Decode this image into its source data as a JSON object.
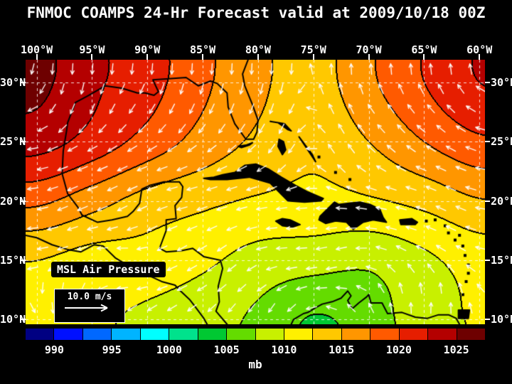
{
  "title": "FNMOC COAMPS 24-Hr Forecast valid at 2009/10/18 00Z",
  "colors": {
    "background": "#000000",
    "text": "#ffffff",
    "contour": "#000000",
    "coastline": "#000000",
    "grid_lines": "#ffffff",
    "wind_arrows": "#ffffff"
  },
  "map": {
    "overlay_label": "MSL Air Pressure",
    "wind_scale_label": "10.0 m/s",
    "lon_tick_labels": [
      "100°W",
      "95°W",
      "90°W",
      "85°W",
      "80°W",
      "75°W",
      "70°W",
      "65°W",
      "60°W"
    ],
    "lon_tick_values": [
      -100,
      -95,
      -90,
      -85,
      -80,
      -75,
      -70,
      -65,
      -60
    ],
    "lat_tick_labels": [
      "30°N",
      "25°N",
      "20°N",
      "15°N",
      "10°N"
    ],
    "lat_tick_values": [
      30,
      25,
      20,
      15,
      10
    ],
    "lon_range": [
      -101.0,
      -59.5
    ],
    "lat_range": [
      9.6,
      31.9
    ]
  },
  "colorbar": {
    "unit": "mb",
    "min": 987.5,
    "max": 1027.5,
    "step": 2.5,
    "tick_labels": [
      990,
      995,
      1000,
      1005,
      1010,
      1015,
      1020,
      1025
    ],
    "palette": [
      "#000082",
      "#0010ff",
      "#0068ff",
      "#00b4ff",
      "#00ffff",
      "#00e28c",
      "#00c832",
      "#64dc00",
      "#c8f000",
      "#fff000",
      "#ffc800",
      "#ff9600",
      "#ff5a00",
      "#e61e00",
      "#b40000",
      "#6e0000"
    ]
  },
  "chart_data": {
    "type": "heatmap",
    "title": "FNMOC COAMPS 24-Hr Forecast valid at 2009/10/18 00Z",
    "variable": "MSL Air Pressure",
    "unit": "mb",
    "contour_interval_mb": 2.5,
    "colorbar_range_mb": [
      987.5,
      1027.5
    ],
    "grid_lons": [
      -100,
      -95,
      -90,
      -85,
      -80,
      -75,
      -70,
      -65,
      -60
    ],
    "grid_lats": [
      30,
      25,
      20,
      15,
      10
    ],
    "pressure_mb": [
      [
        1025.6,
        1023.0,
        1021.0,
        1018.0,
        1015.5,
        1014.0,
        1017.0,
        1020.0,
        1022.5
      ],
      [
        1023.5,
        1021.5,
        1019.0,
        1016.5,
        1014.5,
        1013.0,
        1015.0,
        1017.5,
        1019.5
      ],
      [
        1018.0,
        1016.0,
        1014.0,
        1013.0,
        1012.2,
        1011.8,
        1012.2,
        1013.2,
        1014.8
      ],
      [
        1012.5,
        1011.5,
        1011.5,
        1010.5,
        1009.0,
        1008.5,
        1008.0,
        1009.5,
        1011.0
      ],
      [
        1012.0,
        1010.5,
        1009.5,
        1008.5,
        1007.0,
        1004.8,
        1006.2,
        1009.0,
        1010.2
      ]
    ],
    "features": [
      "high pressure ridge over Texas / western Gulf of Mexico (> 1025 mb)",
      "secondary high northeast Atlantic corner (~ 1022 mb)",
      "weak low over southern Caribbean (~ 1005 mb)",
      "easterly trade-wind flow across southern map"
    ],
    "wind": {
      "depiction": "white streamline arrows",
      "reference_speed": "10.0 m/s"
    }
  },
  "coastlines": [
    {
      "name": "us-gulf-atlantic-coast",
      "fill": false,
      "points": [
        [
          -95.9,
          18.8
        ],
        [
          -96.3,
          19.5
        ],
        [
          -97.2,
          20.6
        ],
        [
          -97.7,
          22.3
        ],
        [
          -97.6,
          24.2
        ],
        [
          -97.3,
          25.9
        ],
        [
          -97.2,
          26.6
        ],
        [
          -96.5,
          28.3
        ],
        [
          -95.3,
          28.9
        ],
        [
          -93.8,
          29.7
        ],
        [
          -92.3,
          29.5
        ],
        [
          -90.9,
          29.1
        ],
        [
          -90.2,
          29.1
        ],
        [
          -89.4,
          28.9
        ],
        [
          -89.0,
          29.2
        ],
        [
          -89.5,
          30.2
        ],
        [
          -88.1,
          30.3
        ],
        [
          -86.5,
          30.4
        ],
        [
          -85.4,
          29.7
        ],
        [
          -84.3,
          30.1
        ],
        [
          -83.7,
          29.9
        ],
        [
          -82.8,
          29.1
        ],
        [
          -82.7,
          27.9
        ],
        [
          -82.1,
          26.5
        ],
        [
          -81.1,
          25.2
        ],
        [
          -80.4,
          25.2
        ],
        [
          -80.1,
          25.8
        ],
        [
          -80.0,
          26.8
        ],
        [
          -80.5,
          28.1
        ],
        [
          -81.2,
          29.7
        ],
        [
          -81.4,
          30.7
        ],
        [
          -80.9,
          31.9
        ]
      ]
    },
    {
      "name": "mexico-central-america-coast",
      "fill": false,
      "points": [
        [
          -95.9,
          18.8
        ],
        [
          -94.5,
          18.2
        ],
        [
          -93.2,
          18.4
        ],
        [
          -91.8,
          18.7
        ],
        [
          -91.3,
          19.1
        ],
        [
          -90.7,
          19.8
        ],
        [
          -90.5,
          21.0
        ],
        [
          -89.8,
          21.3
        ],
        [
          -88.5,
          21.6
        ],
        [
          -87.1,
          21.6
        ],
        [
          -86.8,
          21.2
        ],
        [
          -86.9,
          20.3
        ],
        [
          -87.5,
          19.6
        ],
        [
          -87.4,
          18.5
        ],
        [
          -88.3,
          18.4
        ],
        [
          -88.3,
          17.5
        ],
        [
          -88.9,
          16.0
        ],
        [
          -88.3,
          15.7
        ],
        [
          -86.9,
          15.8
        ],
        [
          -85.9,
          16.0
        ],
        [
          -84.9,
          15.3
        ],
        [
          -83.4,
          15.0
        ],
        [
          -83.2,
          14.3
        ],
        [
          -83.6,
          12.8
        ],
        [
          -83.5,
          11.5
        ],
        [
          -83.8,
          10.7
        ],
        [
          -82.8,
          9.6
        ]
      ]
    },
    {
      "name": "pacific-coast",
      "fill": false,
      "points": [
        [
          -101.0,
          17.1
        ],
        [
          -100.0,
          16.9
        ],
        [
          -98.6,
          16.3
        ],
        [
          -97.2,
          15.9
        ],
        [
          -96.0,
          15.7
        ],
        [
          -94.8,
          16.3
        ],
        [
          -94.0,
          16.2
        ],
        [
          -92.9,
          15.2
        ],
        [
          -91.5,
          14.4
        ],
        [
          -90.1,
          13.8
        ],
        [
          -88.7,
          13.2
        ],
        [
          -87.5,
          12.9
        ],
        [
          -87.0,
          12.4
        ],
        [
          -86.2,
          11.7
        ],
        [
          -85.7,
          11.1
        ],
        [
          -84.9,
          10.1
        ],
        [
          -84.6,
          9.6
        ]
      ]
    },
    {
      "name": "cuba",
      "fill": true,
      "points": [
        [
          -84.9,
          21.9
        ],
        [
          -84.0,
          22.0
        ],
        [
          -83.2,
          22.2
        ],
        [
          -82.1,
          22.4
        ],
        [
          -81.2,
          23.0
        ],
        [
          -80.2,
          23.1
        ],
        [
          -79.1,
          22.7
        ],
        [
          -77.9,
          22.0
        ],
        [
          -76.6,
          21.3
        ],
        [
          -75.6,
          20.8
        ],
        [
          -74.1,
          20.2
        ],
        [
          -74.3,
          20.0
        ],
        [
          -75.8,
          19.9
        ],
        [
          -77.3,
          20.0
        ],
        [
          -78.9,
          21.5
        ],
        [
          -80.8,
          22.0
        ],
        [
          -82.8,
          21.8
        ],
        [
          -84.3,
          21.8
        ]
      ]
    },
    {
      "name": "hispaniola",
      "fill": true,
      "points": [
        [
          -74.5,
          18.4
        ],
        [
          -74.4,
          18.7
        ],
        [
          -73.1,
          19.9
        ],
        [
          -72.7,
          19.7
        ],
        [
          -71.8,
          19.8
        ],
        [
          -70.8,
          19.9
        ],
        [
          -69.9,
          19.7
        ],
        [
          -69.0,
          19.3
        ],
        [
          -68.7,
          18.6
        ],
        [
          -68.4,
          18.2
        ],
        [
          -69.6,
          18.4
        ],
        [
          -70.5,
          18.2
        ],
        [
          -71.4,
          17.6
        ],
        [
          -72.0,
          18.2
        ],
        [
          -73.0,
          18.3
        ],
        [
          -73.9,
          18.1
        ]
      ]
    },
    {
      "name": "jamaica",
      "fill": true,
      "points": [
        [
          -78.4,
          18.3
        ],
        [
          -77.8,
          18.5
        ],
        [
          -77.1,
          18.4
        ],
        [
          -76.2,
          18.0
        ],
        [
          -76.9,
          17.8
        ],
        [
          -77.8,
          17.9
        ]
      ]
    },
    {
      "name": "puerto-rico",
      "fill": true,
      "points": [
        [
          -67.2,
          18.4
        ],
        [
          -66.1,
          18.5
        ],
        [
          -65.6,
          18.2
        ],
        [
          -65.8,
          18.0
        ],
        [
          -67.1,
          18.0
        ]
      ]
    },
    {
      "name": "andros-bahamas",
      "fill": true,
      "points": [
        [
          -78.1,
          25.2
        ],
        [
          -77.7,
          25.0
        ],
        [
          -77.5,
          24.3
        ],
        [
          -77.8,
          23.9
        ],
        [
          -78.2,
          24.6
        ]
      ]
    },
    {
      "name": "grand-bahama-abaco",
      "fill": true,
      "points": [
        [
          -78.9,
          26.7
        ],
        [
          -77.6,
          26.5
        ],
        [
          -77.0,
          25.9
        ],
        [
          -77.3,
          26.0
        ],
        [
          -78.2,
          26.6
        ]
      ]
    },
    {
      "name": "eleuthera-long-island",
      "fill": true,
      "points": [
        [
          -76.3,
          25.4
        ],
        [
          -75.1,
          23.9
        ],
        [
          -74.8,
          23.3
        ],
        [
          -75.3,
          24.0
        ]
      ]
    },
    {
      "name": "south-america-coast",
      "fill": false,
      "points": [
        [
          -77.0,
          9.6
        ],
        [
          -76.8,
          10.0
        ],
        [
          -75.9,
          10.5
        ],
        [
          -75.5,
          10.6
        ],
        [
          -74.8,
          11.0
        ],
        [
          -74.2,
          11.3
        ],
        [
          -73.3,
          11.5
        ],
        [
          -72.5,
          11.8
        ],
        [
          -71.9,
          12.4
        ],
        [
          -71.6,
          12.0
        ],
        [
          -71.9,
          11.6
        ],
        [
          -71.5,
          10.9
        ],
        [
          -70.9,
          11.4
        ],
        [
          -70.2,
          11.9
        ],
        [
          -70.0,
          12.1
        ],
        [
          -69.8,
          11.4
        ],
        [
          -68.8,
          11.4
        ],
        [
          -68.3,
          10.5
        ],
        [
          -67.0,
          10.6
        ],
        [
          -65.8,
          10.2
        ],
        [
          -64.7,
          10.1
        ],
        [
          -63.7,
          10.4
        ],
        [
          -62.8,
          10.4
        ],
        [
          -62.1,
          10.1
        ],
        [
          -61.8,
          9.6
        ]
      ]
    },
    {
      "name": "trinidad",
      "fill": true,
      "points": [
        [
          -61.9,
          10.8
        ],
        [
          -60.9,
          10.8
        ],
        [
          -61.0,
          10.1
        ],
        [
          -61.9,
          10.1
        ]
      ]
    },
    {
      "name": "florida-keys",
      "fill": true,
      "points": [
        [
          -81.8,
          24.6
        ],
        [
          -81.1,
          24.7
        ],
        [
          -80.5,
          24.9
        ],
        [
          -80.8,
          24.7
        ],
        [
          -81.5,
          24.5
        ]
      ]
    }
  ],
  "islets": [
    [
      -61.5,
      12.1
    ],
    [
      -61.2,
      13.2
    ],
    [
      -61.0,
      13.9
    ],
    [
      -61.0,
      14.6
    ],
    [
      -61.3,
      15.4
    ],
    [
      -61.5,
      16.2
    ],
    [
      -62.2,
      16.7
    ],
    [
      -61.8,
      17.1
    ],
    [
      -62.8,
      17.3
    ],
    [
      -63.1,
      17.9
    ],
    [
      -64.8,
      18.3
    ],
    [
      -64.0,
      18.4
    ],
    [
      -71.7,
      21.8
    ],
    [
      -73.0,
      22.4
    ],
    [
      -74.5,
      23.7
    ]
  ]
}
